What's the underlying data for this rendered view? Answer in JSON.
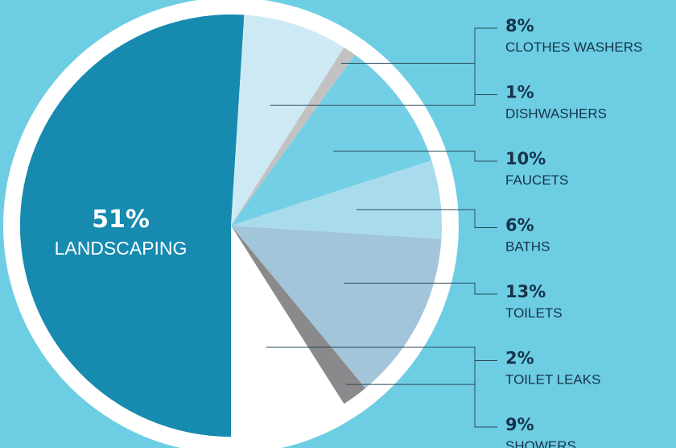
{
  "chart_data": {
    "type": "pie",
    "slices": [
      {
        "label": "LANDSCAPING",
        "percent_label": "51%",
        "value": 51,
        "color": "#168aaf"
      },
      {
        "label": "CLOTHES WASHERS",
        "percent_label": "8%",
        "value": 8,
        "color": "#cdeaf4"
      },
      {
        "label": "DISHWASHERS",
        "percent_label": "1%",
        "value": 1,
        "color": "#c2c2c2"
      },
      {
        "label": "FAUCETS",
        "percent_label": "10%",
        "value": 10,
        "color": "#73cfe5"
      },
      {
        "label": "BATHS",
        "percent_label": "6%",
        "value": 6,
        "color": "#a8dced"
      },
      {
        "label": "TOILETS",
        "percent_label": "13%",
        "value": 13,
        "color": "#a3c5d9"
      },
      {
        "label": "TOILET LEAKS",
        "percent_label": "2%",
        "value": 2,
        "color": "#8a8a8c"
      },
      {
        "label": "SHOWERS",
        "percent_label": "9%",
        "value": 9,
        "color": "#ffffff"
      }
    ],
    "colors": {
      "background": "#6dcde3",
      "text_dark": "#16344a",
      "rim": "#ffffff",
      "leader": "#2b4a5a"
    }
  }
}
